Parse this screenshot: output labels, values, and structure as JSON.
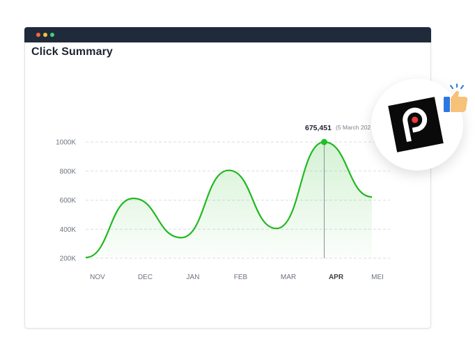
{
  "window": {
    "title_dots": [
      "#f26b3a",
      "#f5c13c",
      "#3fd07a"
    ]
  },
  "chart_title": "Click Summary",
  "tooltip": {
    "value": "675,451",
    "date": "(5 March 202"
  },
  "badge": {
    "logo_icon": "p-logo-icon",
    "reaction_icon": "thumbs-up-icon"
  },
  "colors": {
    "line": "#22b822",
    "marker": "#1fbf2a",
    "grid": "#d9dde2",
    "titlebar": "#1f2a3a"
  },
  "chart_data": {
    "type": "line",
    "title": "Click Summary",
    "categories": [
      "NOV",
      "DEC",
      "JAN",
      "FEB",
      "MAR",
      "APR",
      "MEI"
    ],
    "highlight_category": "APR",
    "y_ticks": [
      "200K",
      "400K",
      "600K",
      "800K",
      "1000K"
    ],
    "ylim": [
      200,
      1000
    ],
    "y_unit": "K",
    "grid": true,
    "series": [
      {
        "x": [
          "NOV",
          "DEC",
          "JAN",
          "FEB",
          "MAR",
          "APR",
          "MEI"
        ],
        "values": [
          205,
          612,
          342,
          805,
          405,
          1000,
          622
        ]
      }
    ]
  }
}
